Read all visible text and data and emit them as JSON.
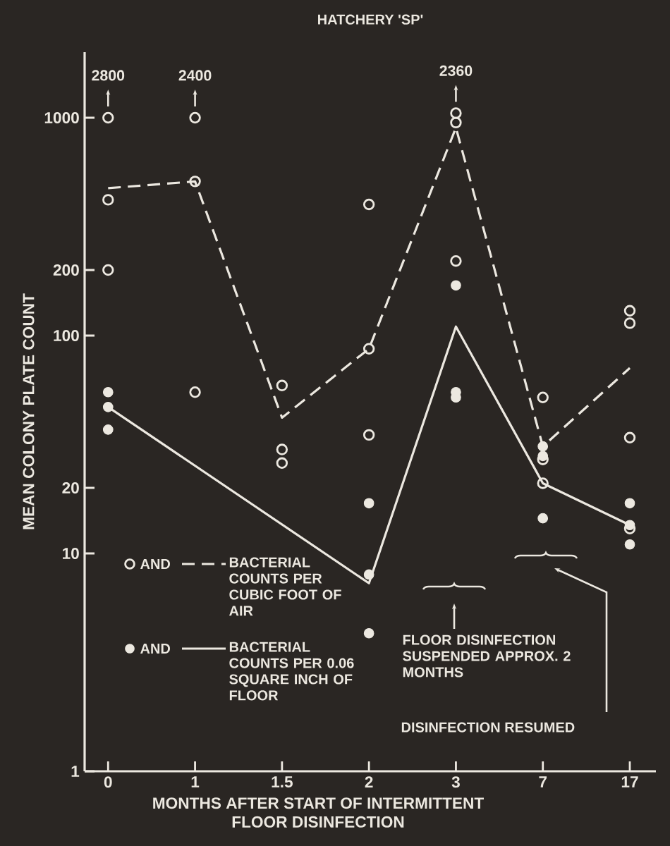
{
  "chart_data": {
    "type": "scatter",
    "title": "HATCHERY 'SP'",
    "xlabel": "MONTHS AFTER START OF INTERMITTENT\nFLOOR DISINFECTION",
    "ylabel": "MEAN COLONY PLATE COUNT",
    "categories": [
      "0",
      "1",
      "1.5",
      "2",
      "3",
      "7",
      "17"
    ],
    "log": "y",
    "ylim": [
      1,
      2000
    ],
    "yticks": [
      1,
      10,
      20,
      100,
      200,
      1000
    ],
    "legend": "bottom left",
    "series": [
      {
        "name": "AND",
        "marker": "circle",
        "color": "#ece8e0",
        "values": [
          1000,
          1000,
          59,
          400,
          1050,
          52,
          130
        ]
      },
      {
        "marker": "circle",
        "color": "#ece8e0",
        "values": [
          420,
          510,
          30,
          87,
          950,
          27,
          114
        ]
      },
      {
        "marker": "circle",
        "color": "#ece8e0",
        "values": [
          200,
          55,
          26,
          35,
          220,
          21,
          34
        ]
      },
      {
        "marker": "circle",
        "color": "#ece8e0",
        "values": [
          null,
          null,
          null,
          null,
          null,
          null,
          13
        ]
      },
      {
        "name": "BACTERIAL COUNTS PER CUBIC FOOT OF AIR",
        "type": "line",
        "line_style": "dashed",
        "color": "#ece8e0",
        "values": [
          475,
          510,
          42,
          87,
          900,
          31,
          71
        ]
      },
      {
        "name": "AND",
        "marker": "circle",
        "color": "#ece8e0",
        "values": [
          55,
          null,
          null,
          17,
          170,
          31,
          17
        ]
      },
      {
        "marker": "circle",
        "color": "#ece8e0",
        "values": [
          47,
          null,
          null,
          8,
          55,
          28,
          13.5
        ]
      },
      {
        "marker": "circle",
        "color": "#ece8e0",
        "values": [
          37,
          null,
          null,
          4.3,
          52,
          14.5,
          11
        ]
      },
      {
        "name": "BACTERIAL COUNTS PER 0.06 SQUARE INCH OF FLOOR",
        "type": "line",
        "line_style": "solid",
        "color": "#ece8e0",
        "x": [
          "0",
          "2",
          "3",
          "7",
          "17"
        ],
        "values": [
          47,
          7.3,
          110,
          21,
          13.5
        ]
      }
    ],
    "annotations": [
      {
        "text": "2800",
        "x": "0",
        "y": 1000
      },
      {
        "text": "2400",
        "x": "1",
        "y": 1000
      },
      {
        "text": "2360",
        "x": "3",
        "y": 1050
      },
      "FLOOR DISINFECTION SUSPENDED APPROX. 2 MONTHS",
      "DISINFECTION RESUMED"
    ]
  }
}
